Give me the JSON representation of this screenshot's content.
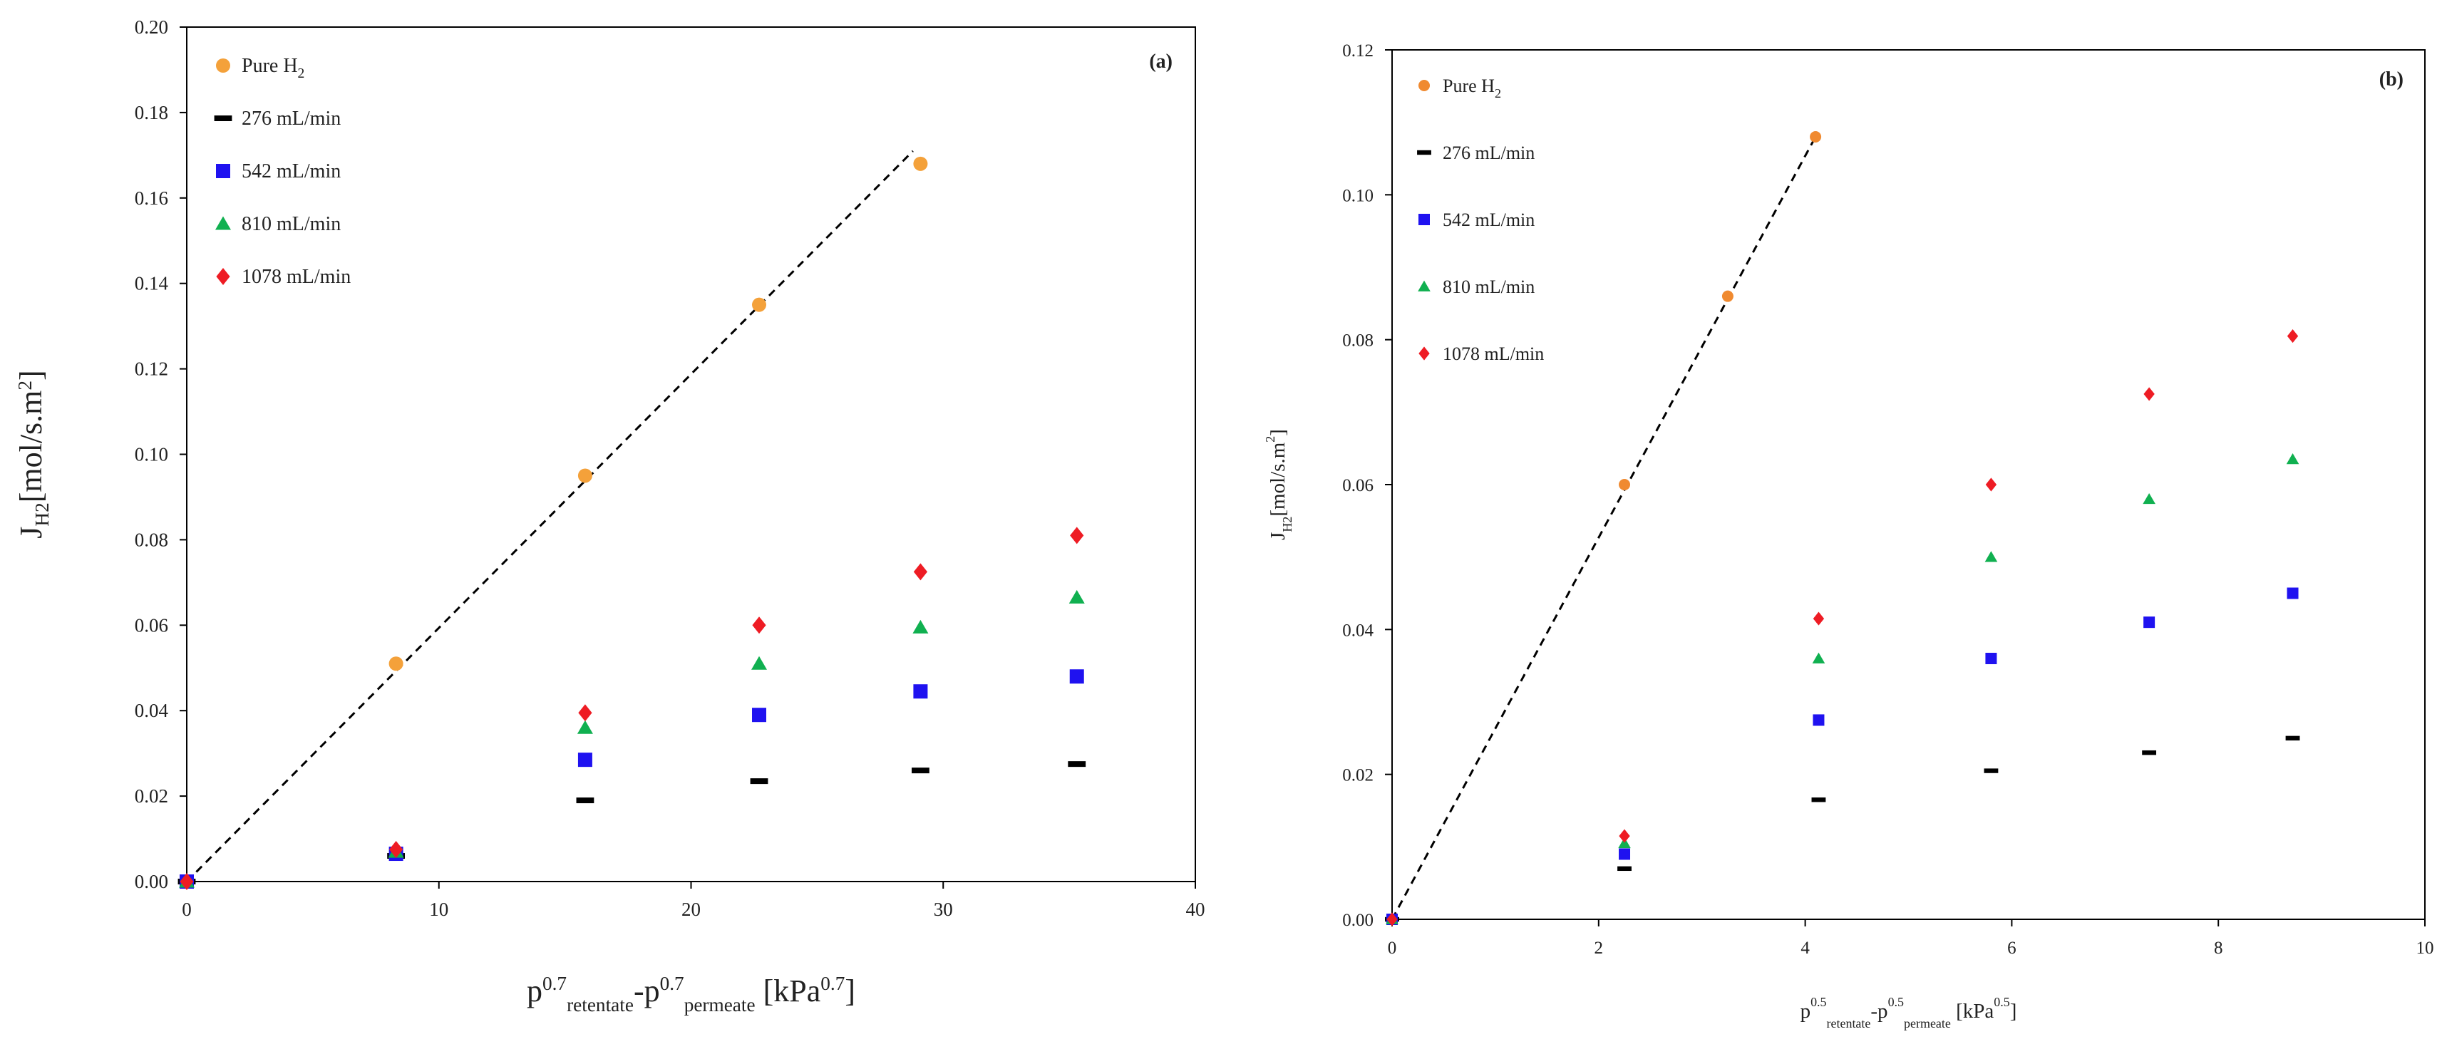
{
  "chart_data": [
    {
      "type": "scatter",
      "panel_label": "(a)",
      "xlabel": {
        "base": "p",
        "sup1": "0.7",
        "sub1": "retentate",
        "mid": "-p",
        "sup2": "0.7",
        "sub2": "permeate",
        "unit_pre": " [kPa",
        "unit_sup": "0.7",
        "unit_post": "]"
      },
      "ylabel": {
        "base": "J",
        "sub": "H2",
        "rest": "[mol/s.m",
        "sup": "2",
        "end": "]"
      },
      "xlim": [
        0,
        40
      ],
      "ylim": [
        0,
        0.2
      ],
      "xticks": [
        0,
        10,
        20,
        30,
        40
      ],
      "yticks": [
        0,
        0.02,
        0.04,
        0.06,
        0.08,
        0.1,
        0.12,
        0.14,
        0.16,
        0.18,
        0.2
      ],
      "x_decimals": 0,
      "y_decimals": 2,
      "series": [
        {
          "name": "Pure H",
          "name_sub": "2",
          "marker": "circle",
          "color": "#F4A13A",
          "x": [
            0,
            8.3,
            15.8,
            22.7,
            29.1
          ],
          "y": [
            0,
            0.051,
            0.095,
            0.135,
            0.168
          ]
        },
        {
          "name": "276 mL/min",
          "marker": "dash",
          "color": "#000000",
          "x": [
            0,
            8.3,
            15.8,
            22.7,
            29.1,
            35.3
          ],
          "y": [
            0,
            0.006,
            0.019,
            0.0235,
            0.026,
            0.0275
          ]
        },
        {
          "name": "542 mL/min",
          "marker": "square",
          "color": "#1F12F0",
          "x": [
            0,
            8.3,
            15.8,
            22.7,
            29.1,
            35.3
          ],
          "y": [
            0,
            0.0065,
            0.0285,
            0.039,
            0.0445,
            0.048
          ]
        },
        {
          "name": "810 mL/min",
          "marker": "triangle",
          "color": "#10B050",
          "x": [
            0,
            8.3,
            15.8,
            22.7,
            29.1,
            35.3
          ],
          "y": [
            0,
            0.007,
            0.036,
            0.051,
            0.0595,
            0.0665
          ]
        },
        {
          "name": "1078 mL/min",
          "marker": "diamond",
          "color": "#EE1C24",
          "x": [
            0,
            8.3,
            15.8,
            22.7,
            29.1,
            35.3
          ],
          "y": [
            0,
            0.0075,
            0.0395,
            0.06,
            0.0725,
            0.081
          ]
        }
      ],
      "trendline": {
        "style": "dashed",
        "x": [
          0,
          28.8
        ],
        "y": [
          0,
          0.171
        ]
      }
    },
    {
      "type": "scatter",
      "panel_label": "(b)",
      "xlabel": {
        "base": "p",
        "sup1": "0.5",
        "sub1": "retentate",
        "mid": "-p",
        "sup2": "0.5",
        "sub2": "permeate",
        "unit_pre": " [kPa",
        "unit_sup": "0.5",
        "unit_post": "]"
      },
      "ylabel": {
        "base": "J",
        "sub": "H2",
        "rest": "[mol/s.m",
        "sup": "2",
        "end": "]"
      },
      "xlim": [
        0,
        10
      ],
      "ylim": [
        0,
        0.12
      ],
      "xticks": [
        0,
        2,
        4,
        6,
        8,
        10
      ],
      "yticks": [
        0,
        0.02,
        0.04,
        0.06,
        0.08,
        0.1,
        0.12
      ],
      "x_decimals": 0,
      "y_decimals": 2,
      "series": [
        {
          "name": "Pure H",
          "name_sub": "2",
          "marker": "circle",
          "color": "#F08A30",
          "x": [
            0,
            2.25,
            3.25,
            4.1
          ],
          "y": [
            0,
            0.06,
            0.086,
            0.108
          ]
        },
        {
          "name": "276 mL/min",
          "marker": "dash",
          "color": "#000000",
          "x": [
            0,
            2.25,
            4.13,
            5.8,
            7.33,
            8.72
          ],
          "y": [
            0,
            0.007,
            0.0165,
            0.0205,
            0.023,
            0.025
          ]
        },
        {
          "name": "542 mL/min",
          "marker": "square",
          "color": "#1F12F0",
          "x": [
            0,
            2.25,
            4.13,
            5.8,
            7.33,
            8.72
          ],
          "y": [
            0,
            0.009,
            0.0275,
            0.036,
            0.041,
            0.045
          ]
        },
        {
          "name": "810 mL/min",
          "marker": "triangle",
          "color": "#10B050",
          "x": [
            0,
            2.25,
            4.13,
            5.8,
            7.33,
            8.72
          ],
          "y": [
            0,
            0.0105,
            0.036,
            0.05,
            0.058,
            0.0635
          ]
        },
        {
          "name": "1078 mL/min",
          "marker": "diamond",
          "color": "#EE1C24",
          "x": [
            0,
            2.25,
            4.13,
            5.8,
            7.33,
            8.72
          ],
          "y": [
            0,
            0.0115,
            0.0415,
            0.06,
            0.0725,
            0.0805
          ]
        }
      ],
      "trendline": {
        "style": "dashed",
        "x": [
          0,
          4.1
        ],
        "y": [
          0,
          0.108
        ]
      }
    }
  ]
}
